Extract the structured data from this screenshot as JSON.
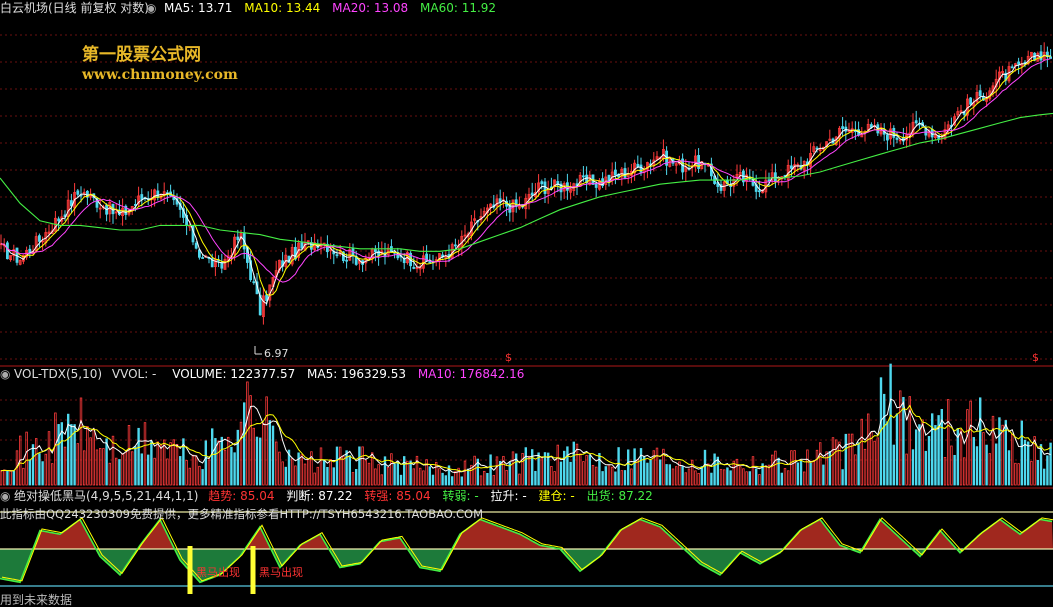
{
  "header": {
    "title": "白云机场(日线 前复权 对数)",
    "ma_items": [
      {
        "label": "MA5: 13.71",
        "color": "#ffffff"
      },
      {
        "label": "MA10: 13.44",
        "color": "#ffff00"
      },
      {
        "label": "MA20: 13.08",
        "color": "#ff44ff"
      },
      {
        "label": "MA60: 11.92",
        "color": "#44ee44"
      }
    ]
  },
  "watermark": {
    "line1": "第一股票公式网",
    "line2": "www.chnmoney.com"
  },
  "price_panel": {
    "low_label": "6.97",
    "marker": "$"
  },
  "volume_panel": {
    "title": "VOL-TDX(5,10)",
    "vvol": "VVOL: -",
    "volume": "VOLUME: 122377.57",
    "ma5": "MA5: 196329.53",
    "ma10": "MA10: 176842.16"
  },
  "indicator_panel": {
    "title": "绝对操低黑马(4,9,5,5,21,44,1,1)",
    "items": [
      {
        "label": "趋势:",
        "value": "85.04",
        "label_color": "#ff3333",
        "value_color": "#ff3333"
      },
      {
        "label": "判断:",
        "value": "87.22",
        "label_color": "#ffffff",
        "value_color": "#ffffff"
      },
      {
        "label": "转强:",
        "value": "85.04",
        "label_color": "#ff3333",
        "value_color": "#ff3333"
      },
      {
        "label": "转弱:",
        "value": "-",
        "label_color": "#44ee44",
        "value_color": "#44ee44"
      },
      {
        "label": "拉升:",
        "value": "-",
        "label_color": "#ffffff",
        "value_color": "#ffffff"
      },
      {
        "label": "建仓:",
        "value": "-",
        "label_color": "#ffff00",
        "value_color": "#ffff00"
      },
      {
        "label": "出货:",
        "value": "87.22",
        "label_color": "#44ee44",
        "value_color": "#44ee44"
      }
    ],
    "notice": "此指标由QQ243230309免费提供，更多精准指标参看HTTP://TSYH6543216.TAOBAO.COM",
    "signal_label": "黑马出现",
    "footer": "用到未来数据"
  },
  "chart_data": [
    {
      "type": "line",
      "title": "白云机场(日线 前复权 对数)",
      "series": [
        {
          "name": "MA5",
          "color": "#ffffff"
        },
        {
          "name": "MA10",
          "color": "#ffff00"
        },
        {
          "name": "MA20",
          "color": "#ff44ff"
        },
        {
          "name": "MA60",
          "color": "#44ee44"
        }
      ],
      "x": [
        0,
        20,
        40,
        60,
        80,
        100,
        120,
        140,
        160,
        180,
        200,
        220,
        240,
        260,
        280,
        300,
        320,
        340,
        360,
        380,
        400,
        420,
        440,
        460,
        480,
        500,
        520,
        540,
        560,
        580,
        600,
        620,
        640,
        660,
        680,
        700,
        720,
        740,
        760,
        780,
        800,
        820,
        840,
        860,
        880,
        900,
        920,
        940,
        960,
        980,
        1000,
        1020,
        1040,
        1053
      ],
      "close": [
        8.6,
        8.4,
        8.8,
        9.3,
        9.9,
        9.6,
        9.3,
        9.7,
        9.9,
        9.4,
        8.5,
        8.2,
        8.9,
        7.4,
        8.3,
        8.6,
        8.8,
        8.5,
        8.4,
        8.5,
        8.5,
        8.3,
        8.4,
        8.7,
        9.3,
        9.6,
        9.5,
        10.0,
        10.0,
        10.1,
        10.1,
        10.3,
        10.5,
        10.8,
        10.5,
        10.6,
        10.0,
        10.2,
        10.0,
        10.3,
        10.5,
        11.0,
        11.4,
        11.5,
        11.4,
        11.3,
        11.6,
        11.3,
        12.0,
        12.4,
        13.0,
        13.3,
        13.8,
        13.71
      ],
      "ma60": [
        10.2,
        9.6,
        9.2,
        9.1,
        9.1,
        9.05,
        9.0,
        9.0,
        9.1,
        9.1,
        9.1,
        9.0,
        8.95,
        8.9,
        8.8,
        8.75,
        8.7,
        8.65,
        8.6,
        8.6,
        8.6,
        8.55,
        8.55,
        8.6,
        8.75,
        8.9,
        9.05,
        9.25,
        9.45,
        9.6,
        9.75,
        9.85,
        9.95,
        10.05,
        10.1,
        10.15,
        10.15,
        10.15,
        10.2,
        10.2,
        10.25,
        10.35,
        10.5,
        10.65,
        10.8,
        10.95,
        11.1,
        11.2,
        11.35,
        11.5,
        11.65,
        11.8,
        11.88,
        11.92
      ],
      "annotations": [
        "6.97"
      ]
    },
    {
      "type": "bar",
      "title": "VOL-TDX(5,10)",
      "series": [
        {
          "name": "VOLUME",
          "latest": 122377.57
        },
        {
          "name": "MA5",
          "latest": 196329.53
        },
        {
          "name": "MA10",
          "latest": 176842.16
        }
      ],
      "x": [
        0,
        40,
        75,
        110,
        150,
        200,
        250,
        300,
        350,
        400,
        450,
        500,
        550,
        600,
        650,
        700,
        750,
        800,
        850,
        890,
        920,
        960,
        1000,
        1053
      ],
      "values": [
        120,
        150,
        250,
        140,
        180,
        100,
        320,
        90,
        110,
        80,
        70,
        90,
        120,
        110,
        120,
        100,
        90,
        110,
        140,
        330,
        230,
        250,
        220,
        120
      ]
    },
    {
      "type": "area",
      "title": "绝对操低黑马(4,9,5,5,21,44,1,1)",
      "series": [
        {
          "name": "趋势",
          "latest": 85.04
        },
        {
          "name": "判断",
          "latest": 87.22
        },
        {
          "name": "转强",
          "latest": 85.04
        },
        {
          "name": "出货",
          "latest": 87.22
        }
      ],
      "x": [
        0,
        20,
        40,
        60,
        80,
        100,
        120,
        140,
        160,
        180,
        200,
        220,
        240,
        260,
        280,
        300,
        320,
        340,
        360,
        380,
        400,
        420,
        440,
        460,
        480,
        500,
        520,
        540,
        560,
        580,
        600,
        620,
        640,
        660,
        680,
        700,
        720,
        740,
        760,
        780,
        800,
        820,
        840,
        860,
        880,
        900,
        920,
        940,
        960,
        980,
        1000,
        1020,
        1040,
        1053
      ],
      "values": [
        10,
        5,
        75,
        70,
        90,
        40,
        15,
        55,
        90,
        35,
        5,
        15,
        40,
        80,
        25,
        55,
        70,
        25,
        30,
        60,
        65,
        25,
        20,
        70,
        90,
        80,
        70,
        55,
        50,
        20,
        40,
        75,
        90,
        80,
        55,
        30,
        15,
        45,
        30,
        45,
        75,
        90,
        55,
        45,
        90,
        65,
        40,
        75,
        45,
        70,
        90,
        70,
        90,
        87
      ],
      "reference_lines": [
        100,
        50,
        0
      ],
      "signals": [
        {
          "x": 190,
          "label": "黑马出现"
        },
        {
          "x": 253,
          "label": "黑马出现"
        }
      ]
    }
  ]
}
